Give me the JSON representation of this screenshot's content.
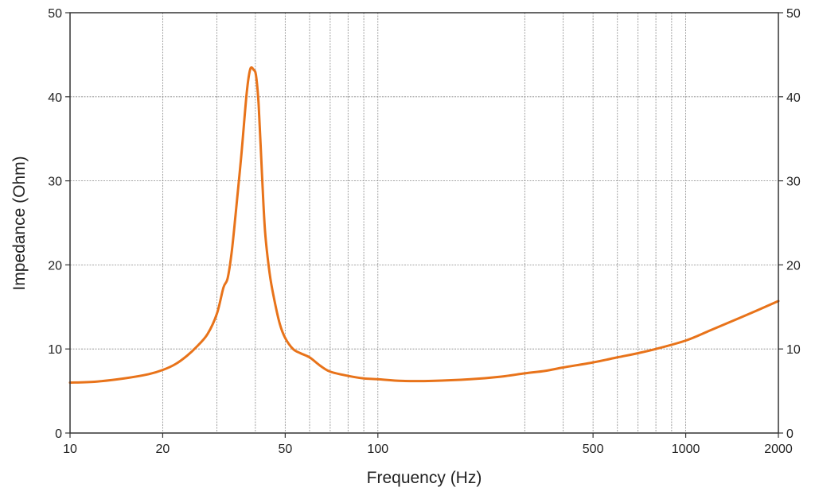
{
  "chart_data": {
    "type": "line",
    "xlabel": "Frequency (Hz)",
    "ylabel": "Impedance (Ohm)",
    "x_scale": "log",
    "xlim": [
      10,
      2000
    ],
    "ylim": [
      0,
      50
    ],
    "x_ticks": [
      10,
      20,
      50,
      100,
      500,
      1000,
      2000
    ],
    "x_tick_labels": [
      "10",
      "20",
      "50",
      "100",
      "500",
      "1000",
      "2000"
    ],
    "x_gridlines": [
      20,
      30,
      40,
      50,
      60,
      70,
      80,
      90,
      100,
      300,
      400,
      500,
      600,
      700,
      800,
      900,
      1000
    ],
    "y_ticks": [
      0,
      10,
      20,
      30,
      40,
      50
    ],
    "y_tick_labels": [
      "0",
      "10",
      "20",
      "30",
      "40",
      "50"
    ],
    "grid": true,
    "right_axis_mirror": true,
    "line_color": "#e8731a",
    "series": [
      {
        "x": [
          10,
          12,
          15,
          18,
          20,
          22,
          24,
          26,
          28,
          30,
          31.5,
          32.5,
          33.5,
          34.5,
          36,
          37.5,
          38.5,
          39.5,
          40.2,
          41,
          42,
          43,
          44.5,
          46,
          48,
          50,
          53,
          56,
          60,
          65,
          70,
          80,
          90,
          100,
          120,
          150,
          200,
          250,
          300,
          350,
          400,
          500,
          600,
          700,
          800,
          1000,
          1200,
          1500,
          2000
        ],
        "y": [
          6.0,
          6.1,
          6.5,
          7.0,
          7.5,
          8.2,
          9.2,
          10.4,
          11.8,
          14.2,
          17.3,
          18.4,
          21.5,
          26.0,
          33.0,
          40.5,
          43.3,
          43.2,
          42.5,
          39.0,
          31.0,
          24.0,
          19.0,
          16.0,
          13.0,
          11.3,
          10.0,
          9.5,
          9.0,
          8.0,
          7.3,
          6.8,
          6.5,
          6.4,
          6.2,
          6.2,
          6.4,
          6.7,
          7.1,
          7.4,
          7.8,
          8.4,
          9.0,
          9.5,
          10.0,
          11.0,
          12.2,
          13.7,
          15.7
        ]
      }
    ]
  }
}
